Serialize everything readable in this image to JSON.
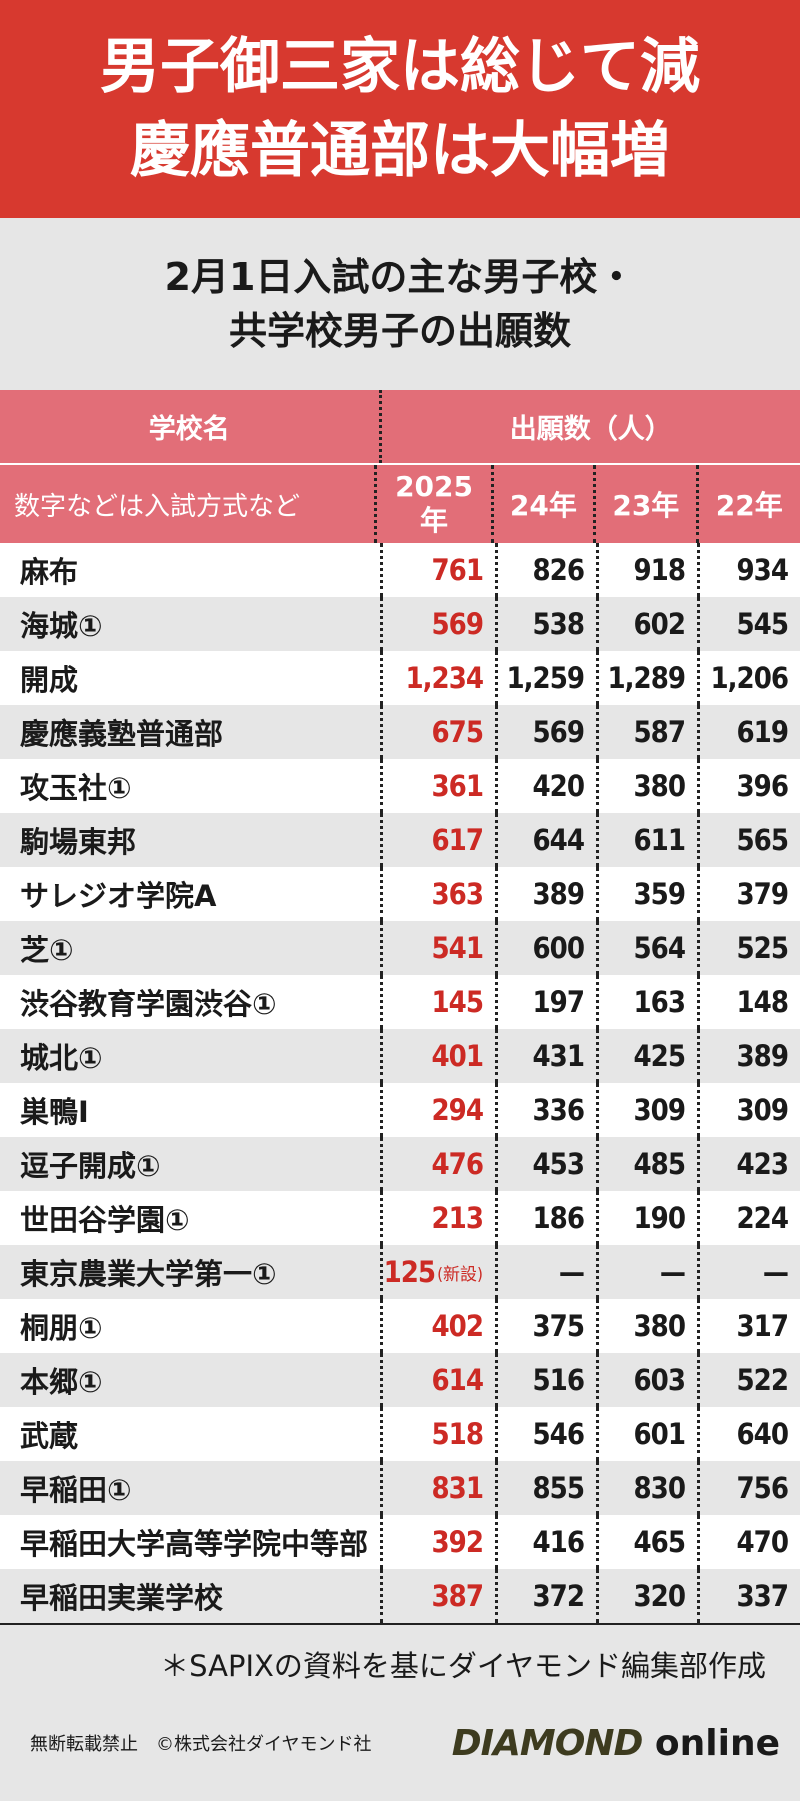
{
  "headline": {
    "line1": "男子御三家は総じて減",
    "line2": "慶應普通部は大幅増"
  },
  "subtitle": {
    "line1": "2月1日入試の主な男子校・",
    "line2": "共学校男子の出願数"
  },
  "table_header": {
    "school_col": "学校名",
    "count_col": "出願数（人）",
    "note": "数字などは入試方式など",
    "year_2025_a": "2025",
    "year_2025_b": "年",
    "year_24": "24年",
    "year_23": "23年",
    "year_22": "22年"
  },
  "rows": [
    {
      "school": "麻布",
      "y2025": "761",
      "y2025_note": "",
      "y24": "826",
      "y23": "918",
      "y22": "934"
    },
    {
      "school": "海城①",
      "y2025": "569",
      "y2025_note": "",
      "y24": "538",
      "y23": "602",
      "y22": "545"
    },
    {
      "school": "開成",
      "y2025": "1,234",
      "y2025_note": "",
      "y24": "1,259",
      "y23": "1,289",
      "y22": "1,206"
    },
    {
      "school": "慶應義塾普通部",
      "y2025": "675",
      "y2025_note": "",
      "y24": "569",
      "y23": "587",
      "y22": "619"
    },
    {
      "school": "攻玉社①",
      "y2025": "361",
      "y2025_note": "",
      "y24": "420",
      "y23": "380",
      "y22": "396"
    },
    {
      "school": "駒場東邦",
      "y2025": "617",
      "y2025_note": "",
      "y24": "644",
      "y23": "611",
      "y22": "565"
    },
    {
      "school": "サレジオ学院A",
      "y2025": "363",
      "y2025_note": "",
      "y24": "389",
      "y23": "359",
      "y22": "379"
    },
    {
      "school": "芝①",
      "y2025": "541",
      "y2025_note": "",
      "y24": "600",
      "y23": "564",
      "y22": "525"
    },
    {
      "school": "渋谷教育学園渋谷①",
      "y2025": "145",
      "y2025_note": "",
      "y24": "197",
      "y23": "163",
      "y22": "148"
    },
    {
      "school": "城北①",
      "y2025": "401",
      "y2025_note": "",
      "y24": "431",
      "y23": "425",
      "y22": "389"
    },
    {
      "school": "巣鴨I",
      "y2025": "294",
      "y2025_note": "",
      "y24": "336",
      "y23": "309",
      "y22": "309"
    },
    {
      "school": "逗子開成①",
      "y2025": "476",
      "y2025_note": "",
      "y24": "453",
      "y23": "485",
      "y22": "423"
    },
    {
      "school": "世田谷学園①",
      "y2025": "213",
      "y2025_note": "",
      "y24": "186",
      "y23": "190",
      "y22": "224"
    },
    {
      "school": "東京農業大学第一①",
      "y2025": "125",
      "y2025_note": "(新設)",
      "y24": "—",
      "y23": "—",
      "y22": "—"
    },
    {
      "school": "桐朋①",
      "y2025": "402",
      "y2025_note": "",
      "y24": "375",
      "y23": "380",
      "y22": "317"
    },
    {
      "school": "本郷①",
      "y2025": "614",
      "y2025_note": "",
      "y24": "516",
      "y23": "603",
      "y22": "522"
    },
    {
      "school": "武蔵",
      "y2025": "518",
      "y2025_note": "",
      "y24": "546",
      "y23": "601",
      "y22": "640"
    },
    {
      "school": "早稲田①",
      "y2025": "831",
      "y2025_note": "",
      "y24": "855",
      "y23": "830",
      "y22": "756"
    },
    {
      "school": "早稲田大学高等学院中等部",
      "y2025": "392",
      "y2025_note": "",
      "y24": "416",
      "y23": "465",
      "y22": "470"
    },
    {
      "school": "早稲田実業学校",
      "y2025": "387",
      "y2025_note": "",
      "y24": "372",
      "y23": "320",
      "y22": "337"
    }
  ],
  "source": "＊SAPIXの資料を基にダイヤモンド編集部作成",
  "copyright": "無断転載禁止　©株式会社ダイヤモンド社",
  "brand": {
    "part1": "DIAMOND",
    "part2": "online"
  },
  "colors": {
    "banner": "#d7392f",
    "header": "#e26e78",
    "highlight": "#cc2a24"
  },
  "chart_data": {
    "type": "table",
    "columns": [
      "学校名",
      "2025年",
      "24年",
      "23年",
      "22年"
    ],
    "rows": [
      [
        "麻布",
        761,
        826,
        918,
        934
      ],
      [
        "海城①",
        569,
        538,
        602,
        545
      ],
      [
        "開成",
        1234,
        1259,
        1289,
        1206
      ],
      [
        "慶應義塾普通部",
        675,
        569,
        587,
        619
      ],
      [
        "攻玉社①",
        361,
        420,
        380,
        396
      ],
      [
        "駒場東邦",
        617,
        644,
        611,
        565
      ],
      [
        "サレジオ学院A",
        363,
        389,
        359,
        379
      ],
      [
        "芝①",
        541,
        600,
        564,
        525
      ],
      [
        "渋谷教育学園渋谷①",
        145,
        197,
        163,
        148
      ],
      [
        "城北①",
        401,
        431,
        425,
        389
      ],
      [
        "巣鴨I",
        294,
        336,
        309,
        309
      ],
      [
        "逗子開成①",
        476,
        453,
        485,
        423
      ],
      [
        "世田谷学園①",
        213,
        186,
        190,
        224
      ],
      [
        "東京農業大学第一①",
        125,
        null,
        null,
        null
      ],
      [
        "桐朋①",
        402,
        375,
        380,
        317
      ],
      [
        "本郷①",
        614,
        516,
        603,
        522
      ],
      [
        "武蔵",
        518,
        546,
        601,
        640
      ],
      [
        "早稲田①",
        831,
        855,
        830,
        756
      ],
      [
        "早稲田大学高等学院中等部",
        392,
        416,
        465,
        470
      ],
      [
        "早稲田実業学校",
        387,
        372,
        320,
        337
      ]
    ]
  }
}
